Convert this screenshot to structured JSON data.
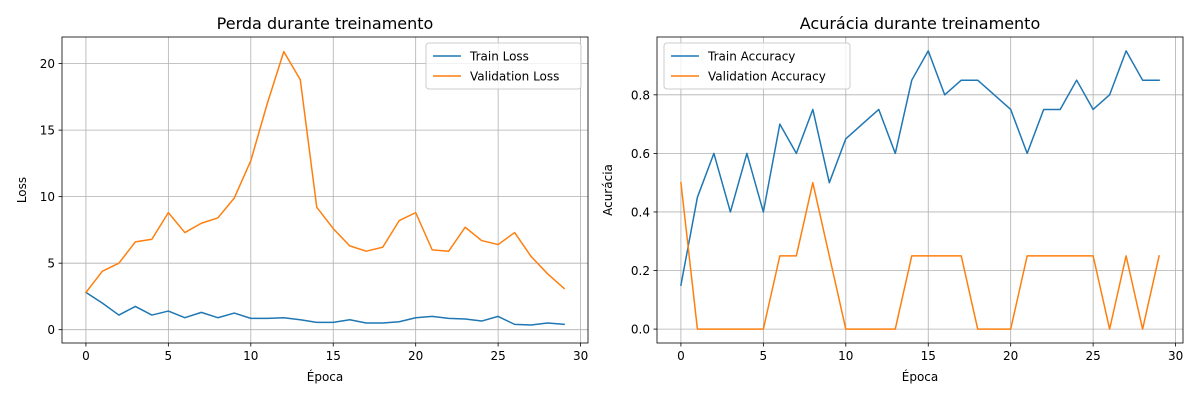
{
  "chart_data": [
    {
      "type": "line",
      "title": "Perda durante treinamento",
      "xlabel": "Época",
      "ylabel": "Loss",
      "xlim": [
        -1.45,
        30.45
      ],
      "ylim": [
        -1.0,
        22.0
      ],
      "xticks": [
        0,
        5,
        10,
        15,
        20,
        25,
        30
      ],
      "yticks": [
        0,
        5,
        10,
        15,
        20
      ],
      "grid": true,
      "legend_position": "upper right",
      "x": [
        0,
        1,
        2,
        3,
        4,
        5,
        6,
        7,
        8,
        9,
        10,
        11,
        12,
        13,
        14,
        15,
        16,
        17,
        18,
        19,
        20,
        21,
        22,
        23,
        24,
        25,
        26,
        27,
        28,
        29
      ],
      "series": [
        {
          "name": "Train Loss",
          "color": "#1f77b4",
          "values": [
            2.8,
            2.0,
            1.1,
            1.75,
            1.1,
            1.4,
            0.9,
            1.3,
            0.9,
            1.25,
            0.85,
            0.85,
            0.9,
            0.75,
            0.55,
            0.55,
            0.75,
            0.5,
            0.5,
            0.6,
            0.9,
            1.0,
            0.85,
            0.8,
            0.65,
            1.0,
            0.4,
            0.35,
            0.5,
            0.4
          ]
        },
        {
          "name": "Validation Loss",
          "color": "#ff7f0e",
          "values": [
            2.8,
            4.4,
            5.0,
            6.6,
            6.8,
            8.8,
            7.3,
            8.0,
            8.4,
            9.9,
            12.7,
            17.0,
            20.9,
            18.8,
            9.2,
            7.6,
            6.3,
            5.9,
            6.2,
            8.2,
            8.8,
            6.0,
            5.9,
            7.7,
            6.7,
            6.4,
            7.3,
            5.5,
            4.2,
            3.1
          ]
        }
      ]
    },
    {
      "type": "line",
      "title": "Acurácia durante treinamento",
      "xlabel": "Época",
      "ylabel": "Acurácia",
      "xlim": [
        -1.45,
        30.45
      ],
      "ylim": [
        -0.0475,
        0.9975
      ],
      "xticks": [
        0,
        5,
        10,
        15,
        20,
        25,
        30
      ],
      "yticks": [
        0.0,
        0.2,
        0.4,
        0.6,
        0.8
      ],
      "ytick_labels": [
        "0.0",
        "0.2",
        "0.4",
        "0.6",
        "0.8"
      ],
      "grid": true,
      "legend_position": "upper left",
      "x": [
        0,
        1,
        2,
        3,
        4,
        5,
        6,
        7,
        8,
        9,
        10,
        11,
        12,
        13,
        14,
        15,
        16,
        17,
        18,
        19,
        20,
        21,
        22,
        23,
        24,
        25,
        26,
        27,
        28,
        29
      ],
      "series": [
        {
          "name": "Train Accuracy",
          "color": "#1f77b4",
          "values": [
            0.15,
            0.45,
            0.6,
            0.4,
            0.6,
            0.4,
            0.7,
            0.6,
            0.75,
            0.5,
            0.65,
            0.7,
            0.75,
            0.6,
            0.85,
            0.95,
            0.8,
            0.85,
            0.85,
            0.8,
            0.75,
            0.6,
            0.75,
            0.75,
            0.85,
            0.75,
            0.8,
            0.95,
            0.85,
            0.85
          ]
        },
        {
          "name": "Validation Accuracy",
          "color": "#ff7f0e",
          "values": [
            0.5,
            0.0,
            0.0,
            0.0,
            0.0,
            0.0,
            0.25,
            0.25,
            0.5,
            0.25,
            0.0,
            0.0,
            0.0,
            0.0,
            0.25,
            0.25,
            0.25,
            0.25,
            0.0,
            0.0,
            0.0,
            0.25,
            0.25,
            0.25,
            0.25,
            0.25,
            0.0,
            0.25,
            0.0,
            0.25
          ]
        }
      ]
    }
  ]
}
